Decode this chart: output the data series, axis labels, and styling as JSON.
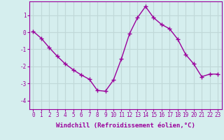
{
  "x": [
    0,
    1,
    2,
    3,
    4,
    5,
    6,
    7,
    8,
    9,
    10,
    11,
    12,
    13,
    14,
    15,
    16,
    17,
    18,
    19,
    20,
    21,
    22,
    23
  ],
  "y": [
    0.05,
    -0.35,
    -0.9,
    -1.4,
    -1.85,
    -2.2,
    -2.5,
    -2.75,
    -3.4,
    -3.45,
    -2.8,
    -1.55,
    -0.1,
    0.85,
    1.5,
    0.85,
    0.45,
    0.2,
    -0.4,
    -1.3,
    -1.85,
    -2.6,
    -2.45,
    -2.45
  ],
  "line_color": "#9b009b",
  "marker": "+",
  "markersize": 4,
  "linewidth": 1.0,
  "xlabel": "Windchill (Refroidissement éolien,°C)",
  "xlabel_fontsize": 6.5,
  "ylim": [
    -4.5,
    1.8
  ],
  "xlim": [
    -0.5,
    23.5
  ],
  "yticks": [
    -4,
    -3,
    -2,
    -1,
    0,
    1
  ],
  "xticks": [
    0,
    1,
    2,
    3,
    4,
    5,
    6,
    7,
    8,
    9,
    10,
    11,
    12,
    13,
    14,
    15,
    16,
    17,
    18,
    19,
    20,
    21,
    22,
    23
  ],
  "bg_color": "#d5eeee",
  "grid_color": "#c0d8d8",
  "tick_fontsize": 5.5
}
